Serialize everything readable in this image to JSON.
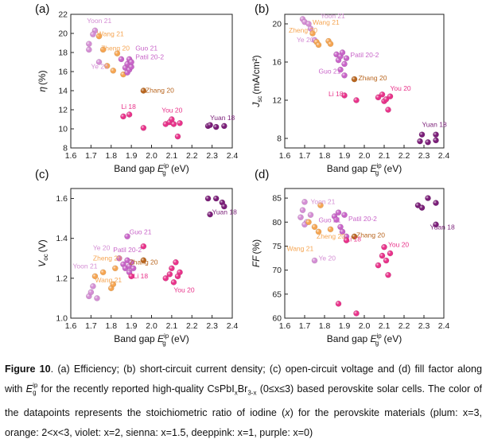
{
  "chart_data": [
    {
      "type": "scatter",
      "panel_label": "(a)",
      "xlabel": "Band gap E_g^ip (eV)",
      "ylabel": "η (%)",
      "xlim": [
        1.6,
        2.4
      ],
      "ylim": [
        8,
        22
      ],
      "xticks": [
        1.6,
        1.7,
        1.8,
        1.9,
        2.0,
        2.1,
        2.2,
        2.3,
        2.4
      ],
      "yticks": [
        8,
        10,
        12,
        14,
        16,
        18,
        20,
        22
      ],
      "grid": false,
      "points": [
        {
          "x": 1.69,
          "y": 18.9,
          "c": "plum"
        },
        {
          "x": 1.69,
          "y": 18.3,
          "c": "plum"
        },
        {
          "x": 1.72,
          "y": 20.3,
          "c": "plum"
        },
        {
          "x": 1.71,
          "y": 19.9,
          "c": "plum"
        },
        {
          "x": 1.74,
          "y": 17.0,
          "c": "plum"
        },
        {
          "x": 1.74,
          "y": 19.7,
          "c": "orange"
        },
        {
          "x": 1.76,
          "y": 18.3,
          "c": "orange"
        },
        {
          "x": 1.78,
          "y": 16.6,
          "c": "orange"
        },
        {
          "x": 1.81,
          "y": 16.1,
          "c": "orange"
        },
        {
          "x": 1.83,
          "y": 17.9,
          "c": "orange"
        },
        {
          "x": 1.86,
          "y": 15.7,
          "c": "orange"
        },
        {
          "x": 1.85,
          "y": 17.3,
          "c": "violet"
        },
        {
          "x": 1.87,
          "y": 16.4,
          "c": "violet"
        },
        {
          "x": 1.88,
          "y": 16.8,
          "c": "violet"
        },
        {
          "x": 1.88,
          "y": 15.9,
          "c": "violet"
        },
        {
          "x": 1.89,
          "y": 17.3,
          "c": "violet"
        },
        {
          "x": 1.89,
          "y": 16.2,
          "c": "violet"
        },
        {
          "x": 1.9,
          "y": 16.5,
          "c": "violet"
        },
        {
          "x": 1.9,
          "y": 17.0,
          "c": "violet"
        },
        {
          "x": 1.96,
          "y": 14.0,
          "c": "sienna"
        },
        {
          "x": 1.86,
          "y": 11.3,
          "c": "deeppink"
        },
        {
          "x": 1.89,
          "y": 11.5,
          "c": "deeppink"
        },
        {
          "x": 1.96,
          "y": 10.1,
          "c": "deeppink"
        },
        {
          "x": 2.07,
          "y": 10.5,
          "c": "deeppink"
        },
        {
          "x": 2.09,
          "y": 10.7,
          "c": "deeppink"
        },
        {
          "x": 2.1,
          "y": 11.0,
          "c": "deeppink"
        },
        {
          "x": 2.11,
          "y": 10.5,
          "c": "deeppink"
        },
        {
          "x": 2.13,
          "y": 9.2,
          "c": "deeppink"
        },
        {
          "x": 2.14,
          "y": 10.6,
          "c": "deeppink"
        },
        {
          "x": 2.28,
          "y": 10.3,
          "c": "purple"
        },
        {
          "x": 2.29,
          "y": 10.4,
          "c": "purple"
        },
        {
          "x": 2.32,
          "y": 10.2,
          "c": "purple"
        },
        {
          "x": 2.36,
          "y": 10.3,
          "c": "purple"
        }
      ],
      "annotations": [
        {
          "text": "Yoon 21",
          "x": 1.68,
          "y": 21.1,
          "c": "plum"
        },
        {
          "text": "Wang 21",
          "x": 1.73,
          "y": 19.7,
          "c": "orange"
        },
        {
          "text": "Zheng 20",
          "x": 1.75,
          "y": 18.2,
          "c": "orange"
        },
        {
          "text": "Guo 21",
          "x": 1.92,
          "y": 18.2,
          "c": "violet"
        },
        {
          "text": "Patil 20-2",
          "x": 1.92,
          "y": 17.3,
          "c": "violet"
        },
        {
          "text": "Ye 20",
          "x": 1.7,
          "y": 16.3,
          "c": "plum"
        },
        {
          "text": "Zhang 20",
          "x": 1.97,
          "y": 13.8,
          "c": "sienna"
        },
        {
          "text": "Li 18",
          "x": 1.85,
          "y": 12.1,
          "c": "deeppink"
        },
        {
          "text": "You 20",
          "x": 2.05,
          "y": 11.7,
          "c": "deeppink"
        },
        {
          "text": "Yuan 18",
          "x": 2.29,
          "y": 10.9,
          "c": "purple"
        }
      ]
    },
    {
      "type": "scatter",
      "panel_label": "(b)",
      "xlabel": "Band gap E_g^ip (eV)",
      "ylabel": "J_sc (mA/cm²)",
      "xlim": [
        1.6,
        2.4
      ],
      "ylim": [
        7,
        21
      ],
      "xticks": [
        1.6,
        1.7,
        1.8,
        1.9,
        2.0,
        2.1,
        2.2,
        2.3,
        2.4
      ],
      "yticks": [
        8,
        12,
        16,
        20
      ],
      "grid": false,
      "points": [
        {
          "x": 1.69,
          "y": 20.5,
          "c": "plum"
        },
        {
          "x": 1.7,
          "y": 20.2,
          "c": "plum"
        },
        {
          "x": 1.72,
          "y": 20.0,
          "c": "plum"
        },
        {
          "x": 1.73,
          "y": 19.5,
          "c": "plum"
        },
        {
          "x": 1.75,
          "y": 18.3,
          "c": "plum"
        },
        {
          "x": 1.74,
          "y": 19.0,
          "c": "orange"
        },
        {
          "x": 1.76,
          "y": 18.1,
          "c": "orange"
        },
        {
          "x": 1.77,
          "y": 17.8,
          "c": "orange"
        },
        {
          "x": 1.82,
          "y": 18.2,
          "c": "orange"
        },
        {
          "x": 1.83,
          "y": 17.9,
          "c": "orange"
        },
        {
          "x": 1.86,
          "y": 16.8,
          "c": "violet"
        },
        {
          "x": 1.87,
          "y": 16.2,
          "c": "violet"
        },
        {
          "x": 1.88,
          "y": 16.6,
          "c": "violet"
        },
        {
          "x": 1.89,
          "y": 17.0,
          "c": "violet"
        },
        {
          "x": 1.9,
          "y": 15.8,
          "c": "violet"
        },
        {
          "x": 1.88,
          "y": 15.2,
          "c": "violet"
        },
        {
          "x": 1.91,
          "y": 16.4,
          "c": "violet"
        },
        {
          "x": 1.9,
          "y": 14.6,
          "c": "violet"
        },
        {
          "x": 1.95,
          "y": 14.2,
          "c": "sienna"
        },
        {
          "x": 1.9,
          "y": 12.5,
          "c": "deeppink"
        },
        {
          "x": 1.96,
          "y": 12.0,
          "c": "deeppink"
        },
        {
          "x": 2.07,
          "y": 12.3,
          "c": "deeppink"
        },
        {
          "x": 2.09,
          "y": 12.6,
          "c": "deeppink"
        },
        {
          "x": 2.1,
          "y": 11.9,
          "c": "deeppink"
        },
        {
          "x": 2.11,
          "y": 12.1,
          "c": "deeppink"
        },
        {
          "x": 2.12,
          "y": 11.0,
          "c": "deeppink"
        },
        {
          "x": 2.13,
          "y": 12.4,
          "c": "deeppink"
        },
        {
          "x": 2.28,
          "y": 7.7,
          "c": "purple"
        },
        {
          "x": 2.29,
          "y": 8.4,
          "c": "purple"
        },
        {
          "x": 2.32,
          "y": 7.6,
          "c": "purple"
        },
        {
          "x": 2.36,
          "y": 7.8,
          "c": "purple"
        },
        {
          "x": 2.36,
          "y": 8.4,
          "c": "purple"
        }
      ],
      "annotations": [
        {
          "text": "Yoon 21",
          "x": 1.78,
          "y": 20.6,
          "c": "plum"
        },
        {
          "text": "Wang 21",
          "x": 1.74,
          "y": 19.9,
          "c": "orange"
        },
        {
          "text": "Zheng 20",
          "x": 1.62,
          "y": 19.1,
          "c": "orange"
        },
        {
          "text": "Ye 20",
          "x": 1.66,
          "y": 18.1,
          "c": "plum"
        },
        {
          "text": "Patil 20-2",
          "x": 1.93,
          "y": 16.5,
          "c": "violet"
        },
        {
          "text": "Guo 21",
          "x": 1.77,
          "y": 14.8,
          "c": "violet"
        },
        {
          "text": "Zhang 20",
          "x": 1.97,
          "y": 14.1,
          "c": "sienna"
        },
        {
          "text": "Li 18",
          "x": 1.82,
          "y": 12.4,
          "c": "deeppink"
        },
        {
          "text": "You 20",
          "x": 2.13,
          "y": 13.0,
          "c": "deeppink"
        },
        {
          "text": "Yuan 18",
          "x": 2.29,
          "y": 9.2,
          "c": "purple"
        }
      ]
    },
    {
      "type": "scatter",
      "panel_label": "(c)",
      "xlabel": "Band gap E_g^ip (eV)",
      "ylabel": "V_oc (V)",
      "xlim": [
        1.6,
        2.4
      ],
      "ylim": [
        1.0,
        1.65
      ],
      "xticks": [
        1.6,
        1.7,
        1.8,
        1.9,
        2.0,
        2.1,
        2.2,
        2.3,
        2.4
      ],
      "yticks": [
        1.0,
        1.2,
        1.4,
        1.6
      ],
      "grid": false,
      "points": [
        {
          "x": 1.69,
          "y": 1.11,
          "c": "plum"
        },
        {
          "x": 1.7,
          "y": 1.13,
          "c": "plum"
        },
        {
          "x": 1.71,
          "y": 1.16,
          "c": "plum"
        },
        {
          "x": 1.73,
          "y": 1.1,
          "c": "plum"
        },
        {
          "x": 1.72,
          "y": 1.21,
          "c": "orange"
        },
        {
          "x": 1.76,
          "y": 1.23,
          "c": "orange"
        },
        {
          "x": 1.8,
          "y": 1.15,
          "c": "orange"
        },
        {
          "x": 1.81,
          "y": 1.17,
          "c": "orange"
        },
        {
          "x": 1.82,
          "y": 1.25,
          "c": "orange"
        },
        {
          "x": 1.84,
          "y": 1.3,
          "c": "violet"
        },
        {
          "x": 1.86,
          "y": 1.27,
          "c": "violet"
        },
        {
          "x": 1.87,
          "y": 1.25,
          "c": "violet"
        },
        {
          "x": 1.88,
          "y": 1.29,
          "c": "violet"
        },
        {
          "x": 1.88,
          "y": 1.41,
          "c": "violet"
        },
        {
          "x": 1.89,
          "y": 1.26,
          "c": "violet"
        },
        {
          "x": 1.89,
          "y": 1.23,
          "c": "violet"
        },
        {
          "x": 1.9,
          "y": 1.28,
          "c": "violet"
        },
        {
          "x": 1.91,
          "y": 1.25,
          "c": "violet"
        },
        {
          "x": 1.96,
          "y": 1.29,
          "c": "sienna"
        },
        {
          "x": 1.9,
          "y": 1.21,
          "c": "deeppink"
        },
        {
          "x": 1.96,
          "y": 1.36,
          "c": "deeppink"
        },
        {
          "x": 2.07,
          "y": 1.2,
          "c": "deeppink"
        },
        {
          "x": 2.09,
          "y": 1.22,
          "c": "deeppink"
        },
        {
          "x": 2.1,
          "y": 1.25,
          "c": "deeppink"
        },
        {
          "x": 2.11,
          "y": 1.18,
          "c": "deeppink"
        },
        {
          "x": 2.12,
          "y": 1.28,
          "c": "deeppink"
        },
        {
          "x": 2.13,
          "y": 1.21,
          "c": "deeppink"
        },
        {
          "x": 2.14,
          "y": 1.23,
          "c": "deeppink"
        },
        {
          "x": 2.28,
          "y": 1.6,
          "c": "purple"
        },
        {
          "x": 2.29,
          "y": 1.52,
          "c": "purple"
        },
        {
          "x": 2.32,
          "y": 1.6,
          "c": "purple"
        },
        {
          "x": 2.35,
          "y": 1.58,
          "c": "purple"
        },
        {
          "x": 2.36,
          "y": 1.56,
          "c": "purple"
        }
      ],
      "annotations": [
        {
          "text": "Guo 21",
          "x": 1.89,
          "y": 1.42,
          "c": "violet"
        },
        {
          "text": "Ye 20",
          "x": 1.71,
          "y": 1.34,
          "c": "plum"
        },
        {
          "text": "Patil 20-2",
          "x": 1.81,
          "y": 1.33,
          "c": "violet"
        },
        {
          "text": "Zheng 20",
          "x": 1.71,
          "y": 1.29,
          "c": "orange"
        },
        {
          "text": "Zhang 20",
          "x": 1.89,
          "y": 1.27,
          "c": "sienna"
        },
        {
          "text": "Yoon 21",
          "x": 1.61,
          "y": 1.25,
          "c": "plum"
        },
        {
          "text": "Li 18",
          "x": 1.91,
          "y": 1.2,
          "c": "deeppink"
        },
        {
          "text": "Wang 21",
          "x": 1.72,
          "y": 1.18,
          "c": "orange"
        },
        {
          "text": "You 20",
          "x": 2.11,
          "y": 1.13,
          "c": "deeppink"
        },
        {
          "text": "Yuan 18",
          "x": 2.3,
          "y": 1.52,
          "c": "purple"
        }
      ]
    },
    {
      "type": "scatter",
      "panel_label": "(d)",
      "xlabel": "Band gap E_g^ip (eV)",
      "ylabel": "FF (%)",
      "xlim": [
        1.6,
        2.4
      ],
      "ylim": [
        60,
        87
      ],
      "xticks": [
        1.6,
        1.7,
        1.8,
        1.9,
        2.0,
        2.1,
        2.2,
        2.3,
        2.4
      ],
      "yticks": [
        60,
        65,
        70,
        75,
        80,
        85
      ],
      "grid": false,
      "points": [
        {
          "x": 1.68,
          "y": 81.0,
          "c": "plum"
        },
        {
          "x": 1.69,
          "y": 82.5,
          "c": "plum"
        },
        {
          "x": 1.7,
          "y": 84.2,
          "c": "plum"
        },
        {
          "x": 1.71,
          "y": 80.0,
          "c": "plum"
        },
        {
          "x": 1.73,
          "y": 81.5,
          "c": "plum"
        },
        {
          "x": 1.7,
          "y": 79.5,
          "c": "plum"
        },
        {
          "x": 1.75,
          "y": 72.0,
          "c": "plum"
        },
        {
          "x": 1.72,
          "y": 80.0,
          "c": "orange"
        },
        {
          "x": 1.75,
          "y": 79.0,
          "c": "orange"
        },
        {
          "x": 1.77,
          "y": 78.0,
          "c": "orange"
        },
        {
          "x": 1.78,
          "y": 83.5,
          "c": "orange"
        },
        {
          "x": 1.83,
          "y": 78.5,
          "c": "orange"
        },
        {
          "x": 1.85,
          "y": 81.2,
          "c": "violet"
        },
        {
          "x": 1.86,
          "y": 80.5,
          "c": "violet"
        },
        {
          "x": 1.87,
          "y": 82.0,
          "c": "violet"
        },
        {
          "x": 1.88,
          "y": 79.0,
          "c": "violet"
        },
        {
          "x": 1.89,
          "y": 78.0,
          "c": "violet"
        },
        {
          "x": 1.9,
          "y": 81.5,
          "c": "violet"
        },
        {
          "x": 1.91,
          "y": 77.0,
          "c": "violet"
        },
        {
          "x": 1.95,
          "y": 77.0,
          "c": "sienna"
        },
        {
          "x": 1.87,
          "y": 63.0,
          "c": "deeppink"
        },
        {
          "x": 1.91,
          "y": 76.2,
          "c": "deeppink"
        },
        {
          "x": 1.96,
          "y": 61.0,
          "c": "deeppink"
        },
        {
          "x": 2.07,
          "y": 71.0,
          "c": "deeppink"
        },
        {
          "x": 2.09,
          "y": 73.0,
          "c": "deeppink"
        },
        {
          "x": 2.1,
          "y": 74.8,
          "c": "deeppink"
        },
        {
          "x": 2.11,
          "y": 72.0,
          "c": "deeppink"
        },
        {
          "x": 2.12,
          "y": 69.0,
          "c": "deeppink"
        },
        {
          "x": 2.13,
          "y": 73.5,
          "c": "deeppink"
        },
        {
          "x": 2.27,
          "y": 83.5,
          "c": "purple"
        },
        {
          "x": 2.29,
          "y": 83.0,
          "c": "purple"
        },
        {
          "x": 2.32,
          "y": 85.0,
          "c": "purple"
        },
        {
          "x": 2.36,
          "y": 84.0,
          "c": "purple"
        },
        {
          "x": 2.36,
          "y": 79.5,
          "c": "purple"
        }
      ],
      "annotations": [
        {
          "text": "Yoon 21",
          "x": 1.73,
          "y": 83.8,
          "c": "plum"
        },
        {
          "text": "Guo 21",
          "x": 1.77,
          "y": 80.0,
          "c": "violet"
        },
        {
          "text": "Patil 20-2",
          "x": 1.92,
          "y": 80.2,
          "c": "violet"
        },
        {
          "text": "Zhang 20",
          "x": 1.96,
          "y": 76.8,
          "c": "sienna"
        },
        {
          "text": "Zheng 20",
          "x": 1.76,
          "y": 76.6,
          "c": "orange"
        },
        {
          "text": "Li 18",
          "x": 1.91,
          "y": 76.0,
          "c": "deeppink"
        },
        {
          "text": "Wang 21",
          "x": 1.61,
          "y": 74.0,
          "c": "orange"
        },
        {
          "text": "You 20",
          "x": 2.12,
          "y": 74.8,
          "c": "deeppink"
        },
        {
          "text": "Ye 20",
          "x": 1.77,
          "y": 72.0,
          "c": "plum"
        },
        {
          "text": "Yuan 18",
          "x": 2.33,
          "y": 78.5,
          "c": "purple"
        }
      ]
    }
  ],
  "colors": {
    "plum": "#d48ed4",
    "orange": "#f5a552",
    "violet": "#c864c8",
    "sienna": "#b8651e",
    "deeppink": "#e8338a",
    "purple": "#7a1e78"
  },
  "caption": {
    "label": "Figure 10",
    "text_before": ". (a) Efficiency; (b) short-circuit current density; (c) open-circuit voltage and (d) fill factor along with ",
    "sym_main": "E",
    "sym_sub": "g",
    "sym_sup": "ip",
    "text_after": " for the recently reported high-quality CsPbI",
    "formula_x": "x",
    "formula_mid": "Br",
    "formula_3x": "3-x",
    "text_range": " (0≤x≤3) based perovskite solar cells. The color of the datapoints represents the stoichiometric ratio of iodine (",
    "var_x": "x",
    "text_end": ") for the perovskite materials (plum: x=3, orange: 2<x<3, violet: x=2, sienna: x=1.5, deeppink: x=1, purple: x=0)"
  }
}
